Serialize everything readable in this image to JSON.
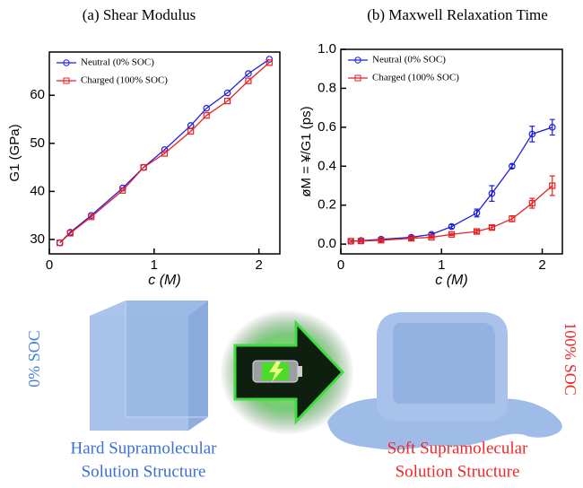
{
  "chart_data": [
    {
      "type": "line",
      "title": "(a) Shear Modulus",
      "x_label": "c (M)",
      "y_label": "G1 (GPa)",
      "xlim": [
        0,
        2.2
      ],
      "xticks": [
        0,
        1,
        2
      ],
      "ylim": [
        27,
        69
      ],
      "yticks": [
        30,
        40,
        50,
        60
      ],
      "legend": "upper left",
      "x": [
        0.1,
        0.2,
        0.4,
        0.7,
        0.9,
        1.1,
        1.35,
        1.5,
        1.7,
        1.9,
        2.1
      ],
      "series": [
        {
          "name": "Neutral (0% SOC)",
          "color": "#1f1fe0",
          "marker": "circle",
          "values": [
            29.3,
            31.5,
            35,
            40.7,
            45,
            48.7,
            53.7,
            57.3,
            60.5,
            64.5,
            67.5
          ]
        },
        {
          "name": "Charged (100% SOC)",
          "color": "#e82020",
          "marker": "square",
          "values": [
            29.3,
            31.3,
            34.7,
            40.2,
            45,
            47.9,
            52.5,
            55.8,
            58.8,
            63,
            66.8
          ]
        }
      ]
    },
    {
      "type": "line",
      "title": "(b) Maxwell Relaxation Time",
      "x_label": "c (M)",
      "y_label": "øM = ¥/G1  (ps)",
      "xlim": [
        0,
        2.2
      ],
      "xticks": [
        0,
        1,
        2
      ],
      "ylim": [
        -0.05,
        1.0
      ],
      "yticks": [
        {
          "value": 0,
          "label": "0.0"
        },
        0.2,
        0.4,
        0.6,
        0.8,
        {
          "value": 1,
          "label": "1.0"
        }
      ],
      "legend": "upper left",
      "x": [
        0.1,
        0.2,
        0.4,
        0.7,
        0.9,
        1.1,
        1.35,
        1.5,
        1.7,
        1.9,
        2.1
      ],
      "series": [
        {
          "name": "Neutral (0% SOC)",
          "color": "#1f1fe0",
          "marker": "circle",
          "values": [
            0.015,
            0.018,
            0.025,
            0.035,
            0.05,
            0.09,
            0.16,
            0.26,
            0.4,
            0.565,
            0.6
          ],
          "errors": [
            0.005,
            0.005,
            0.005,
            0.005,
            0.008,
            0.01,
            0.02,
            0.04,
            0.01,
            0.04,
            0.04
          ]
        },
        {
          "name": "Charged (100% SOC)",
          "color": "#e82020",
          "marker": "square",
          "values": [
            0.015,
            0.016,
            0.02,
            0.03,
            0.035,
            0.05,
            0.065,
            0.085,
            0.13,
            0.21,
            0.3
          ],
          "errors": [
            0.005,
            0.005,
            0.005,
            0.005,
            0.005,
            0.005,
            0.008,
            0.01,
            0.015,
            0.025,
            0.05
          ]
        }
      ]
    }
  ],
  "illustration": {
    "left_state": "0% SOC",
    "right_state": "100% SOC",
    "left_caption": [
      "Hard Supramolecular",
      "Solution Structure"
    ],
    "right_caption": [
      "Soft Supramolecular",
      "Solution Structure"
    ]
  }
}
